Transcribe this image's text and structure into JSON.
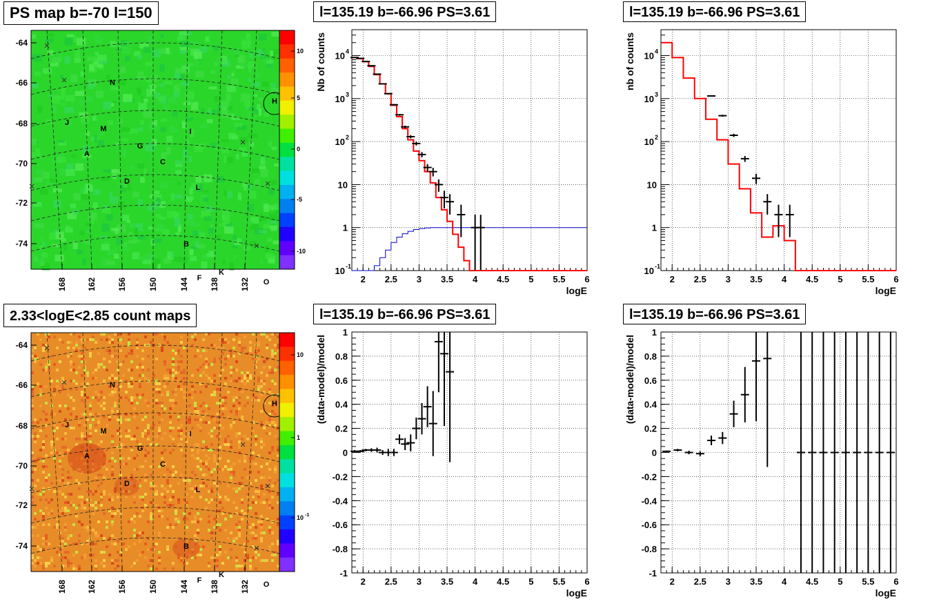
{
  "pads": {
    "ps_map": {
      "title": "PS map b=-70 l=150"
    },
    "count_map": {
      "title": "2.33<logE<2.85 count maps"
    },
    "spec_top_mid": {
      "title": "l=135.19 b=-66.96 PS=3.61"
    },
    "spec_top_right": {
      "title": "l=135.19 b=-66.96 PS=3.61"
    },
    "resid_mid": {
      "title": "l=135.19 b=-66.96 PS=3.61"
    },
    "resid_right": {
      "title": "l=135.19 b=-66.96 PS=3.61"
    }
  },
  "maps": {
    "y_ticks": [
      "-64",
      "-66",
      "-68",
      "-70",
      "-72",
      "-74"
    ],
    "x_ticks": [
      "168",
      "162",
      "156",
      "150",
      "144",
      "138",
      "132"
    ],
    "sources": [
      "N",
      "H",
      "J",
      "M",
      "I",
      "A",
      "G",
      "C",
      "D",
      "L",
      "B",
      "K",
      "F",
      "O"
    ],
    "ps_colorbar_ticks": [
      "10",
      "5",
      "0",
      "-5",
      "-10"
    ],
    "count_colorbar_ticks": [
      "10",
      "1",
      "10"
    ],
    "count_colorbar_exp": "-1",
    "colors": {
      "ps_background": "#2bd62b",
      "count_background": "#e88c28"
    }
  },
  "chart_data": [
    {
      "type": "line",
      "panel": "spectrum (middle)",
      "xlabel": "logE",
      "ylabel": "Nb of counts",
      "log_y": true,
      "xlim": [
        1.8,
        6
      ],
      "ylim": [
        0.1,
        40000
      ],
      "x_ticks": [
        "2",
        "2.5",
        "3",
        "3.5",
        "4",
        "4.5",
        "5",
        "5.5",
        "6"
      ],
      "y_ticks": [
        "10^-1",
        "1",
        "10",
        "10^2",
        "10^3",
        "10^4"
      ],
      "grid": true,
      "model_step": {
        "edges": [
          1.8,
          1.9,
          2.0,
          2.1,
          2.2,
          2.3,
          2.4,
          2.5,
          2.6,
          2.7,
          2.8,
          2.9,
          3.0,
          3.1,
          3.2,
          3.3,
          3.4,
          3.5,
          3.6,
          3.7,
          3.8,
          3.9,
          4.0,
          4.1,
          4.2,
          6.0
        ],
        "values": [
          9000,
          8500,
          7200,
          5600,
          3600,
          2200,
          1300,
          700,
          380,
          200,
          110,
          60,
          36,
          20,
          11,
          5,
          2.6,
          1.4,
          0.7,
          0.35,
          0.17,
          0.1,
          0.1,
          0.1,
          0.1
        ]
      },
      "data_points": [
        {
          "x": 1.85,
          "y": 9000,
          "yerr": 100
        },
        {
          "x": 1.95,
          "y": 8600,
          "yerr": 100
        },
        {
          "x": 2.05,
          "y": 7300,
          "yerr": 90
        },
        {
          "x": 2.15,
          "y": 5800,
          "yerr": 80
        },
        {
          "x": 2.25,
          "y": 3700,
          "yerr": 60
        },
        {
          "x": 2.35,
          "y": 2200,
          "yerr": 50
        },
        {
          "x": 2.45,
          "y": 1300,
          "yerr": 40
        },
        {
          "x": 2.55,
          "y": 720,
          "yerr": 27
        },
        {
          "x": 2.65,
          "y": 420,
          "yerr": 20
        },
        {
          "x": 2.75,
          "y": 220,
          "yerr": 15
        },
        {
          "x": 2.85,
          "y": 130,
          "yerr": 11
        },
        {
          "x": 2.95,
          "y": 90,
          "yerr": 9
        },
        {
          "x": 3.05,
          "y": 50,
          "yerr": 7
        },
        {
          "x": 3.15,
          "y": 25,
          "yerr": 5
        },
        {
          "x": 3.25,
          "y": 20,
          "yerr": 4.5
        },
        {
          "x": 3.35,
          "y": 10,
          "yerr": 3.2
        },
        {
          "x": 3.45,
          "y": 5,
          "yerr": 2.2
        },
        {
          "x": 3.55,
          "y": 4,
          "yerr": 2
        },
        {
          "x": 3.75,
          "y": 2,
          "yerr": 1.4
        },
        {
          "x": 4.0,
          "y": 1,
          "yerr": 0.99
        },
        {
          "x": 4.1,
          "y": 1,
          "yerr": 0.99
        }
      ],
      "efficiency_curve": {
        "x": [
          1.8,
          2.1,
          2.2,
          2.3,
          2.4,
          2.5,
          2.6,
          2.7,
          2.8,
          2.9,
          3.0,
          3.1,
          3.2,
          6.0
        ],
        "y": [
          0.1,
          0.1,
          0.13,
          0.2,
          0.3,
          0.45,
          0.6,
          0.72,
          0.82,
          0.9,
          0.95,
          0.98,
          1.0,
          1.0
        ],
        "color": "#0000cc"
      },
      "colors": {
        "model": "#ff0000",
        "data": "#000000"
      }
    },
    {
      "type": "line",
      "panel": "spectrum (right)",
      "xlabel": "logE",
      "ylabel": "nb of counts",
      "log_y": true,
      "xlim": [
        1.8,
        6
      ],
      "ylim": [
        0.1,
        40000
      ],
      "x_ticks": [
        "2",
        "2.5",
        "3",
        "3.5",
        "4",
        "4.5",
        "5",
        "5.5",
        "6"
      ],
      "y_ticks": [
        "10^-1",
        "1",
        "10",
        "10^2",
        "10^3",
        "10^4"
      ],
      "grid": true,
      "model_step": {
        "edges": [
          1.8,
          2.0,
          2.2,
          2.4,
          2.6,
          2.8,
          3.0,
          3.2,
          3.4,
          3.6,
          3.8,
          4.0,
          4.2,
          6.0
        ],
        "values": [
          20000,
          9000,
          3000,
          1000,
          330,
          110,
          30,
          8,
          2.2,
          0.6,
          1.1,
          0.5,
          0.1
        ]
      },
      "data_points": [
        {
          "x": 2.7,
          "y": 1150,
          "yerr": 34
        },
        {
          "x": 2.9,
          "y": 400,
          "yerr": 20
        },
        {
          "x": 3.1,
          "y": 140,
          "yerr": 12
        },
        {
          "x": 3.3,
          "y": 40,
          "yerr": 6.3
        },
        {
          "x": 3.5,
          "y": 14,
          "yerr": 3.7
        },
        {
          "x": 3.7,
          "y": 4,
          "yerr": 2
        },
        {
          "x": 3.9,
          "y": 2,
          "yerr": 1.4
        },
        {
          "x": 4.1,
          "y": 2,
          "yerr": 1.4
        }
      ],
      "colors": {
        "model": "#ff0000",
        "data": "#000000"
      }
    },
    {
      "type": "scatter",
      "panel": "residual (middle)",
      "xlabel": "logE",
      "ylabel": "(data-model)/model",
      "xlim": [
        1.8,
        6
      ],
      "ylim": [
        -1,
        1
      ],
      "x_ticks": [
        "2",
        "2.5",
        "3",
        "3.5",
        "4",
        "4.5",
        "5",
        "5.5",
        "6"
      ],
      "y_ticks": [
        "-1",
        "-0.8",
        "-0.6",
        "-0.4",
        "-0.2",
        "0",
        "0.2",
        "0.4",
        "0.6",
        "0.8",
        "1"
      ],
      "grid": true,
      "data_points": [
        {
          "x": 1.85,
          "y": 0.01,
          "yerr": 0.01
        },
        {
          "x": 1.95,
          "y": 0.01,
          "yerr": 0.01
        },
        {
          "x": 2.05,
          "y": 0.02,
          "yerr": 0.01
        },
        {
          "x": 2.15,
          "y": 0.02,
          "yerr": 0.015
        },
        {
          "x": 2.25,
          "y": 0.02,
          "yerr": 0.02
        },
        {
          "x": 2.35,
          "y": 0.0,
          "yerr": 0.02
        },
        {
          "x": 2.45,
          "y": 0.0,
          "yerr": 0.03
        },
        {
          "x": 2.55,
          "y": 0.0,
          "yerr": 0.03
        },
        {
          "x": 2.65,
          "y": 0.11,
          "yerr": 0.04
        },
        {
          "x": 2.75,
          "y": 0.07,
          "yerr": 0.05
        },
        {
          "x": 2.85,
          "y": 0.08,
          "yerr": 0.07
        },
        {
          "x": 2.95,
          "y": 0.2,
          "yerr": 0.09
        },
        {
          "x": 3.05,
          "y": 0.28,
          "yerr": 0.13
        },
        {
          "x": 3.15,
          "y": 0.38,
          "yerr": 0.17
        },
        {
          "x": 3.25,
          "y": 0.24,
          "yerr": 0.27
        },
        {
          "x": 3.35,
          "y": 0.92,
          "yerr": 0.42
        },
        {
          "x": 3.45,
          "y": 0.82,
          "yerr": 0.6
        },
        {
          "x": 3.55,
          "y": 0.67,
          "yerr": 0.75
        }
      ]
    },
    {
      "type": "scatter",
      "panel": "residual (right)",
      "xlabel": "logE",
      "ylabel": "(data-model)/model",
      "xlim": [
        1.8,
        6
      ],
      "ylim": [
        -1,
        1
      ],
      "x_ticks": [
        "2",
        "2.5",
        "3",
        "3.5",
        "4",
        "4.5",
        "5",
        "5.5",
        "6"
      ],
      "y_ticks": [
        "-1",
        "-0.8",
        "-0.6",
        "-0.4",
        "-0.2",
        "0",
        "0.2",
        "0.4",
        "0.6",
        "0.8",
        "1"
      ],
      "grid": true,
      "data_points": [
        {
          "x": 1.9,
          "y": 0.01,
          "yerr": 0.005
        },
        {
          "x": 2.1,
          "y": 0.02,
          "yerr": 0.01
        },
        {
          "x": 2.3,
          "y": 0.0,
          "yerr": 0.015
        },
        {
          "x": 2.5,
          "y": -0.01,
          "yerr": 0.02
        },
        {
          "x": 2.7,
          "y": 0.1,
          "yerr": 0.04
        },
        {
          "x": 2.9,
          "y": 0.12,
          "yerr": 0.05
        },
        {
          "x": 3.1,
          "y": 0.32,
          "yerr": 0.11
        },
        {
          "x": 3.3,
          "y": 0.48,
          "yerr": 0.23
        },
        {
          "x": 3.5,
          "y": 0.76,
          "yerr": 0.5
        },
        {
          "x": 3.7,
          "y": 0.78,
          "yerr": 0.9
        },
        {
          "x": 4.3,
          "y": 0,
          "yerr": 1
        },
        {
          "x": 4.5,
          "y": 0,
          "yerr": 1
        },
        {
          "x": 4.7,
          "y": 0,
          "yerr": 1
        },
        {
          "x": 4.9,
          "y": 0,
          "yerr": 1
        },
        {
          "x": 5.1,
          "y": 0,
          "yerr": 1
        },
        {
          "x": 5.3,
          "y": 0,
          "yerr": 1
        },
        {
          "x": 5.5,
          "y": 0,
          "yerr": 1
        },
        {
          "x": 5.7,
          "y": 0,
          "yerr": 1
        },
        {
          "x": 5.9,
          "y": 0,
          "yerr": 1
        }
      ]
    }
  ]
}
